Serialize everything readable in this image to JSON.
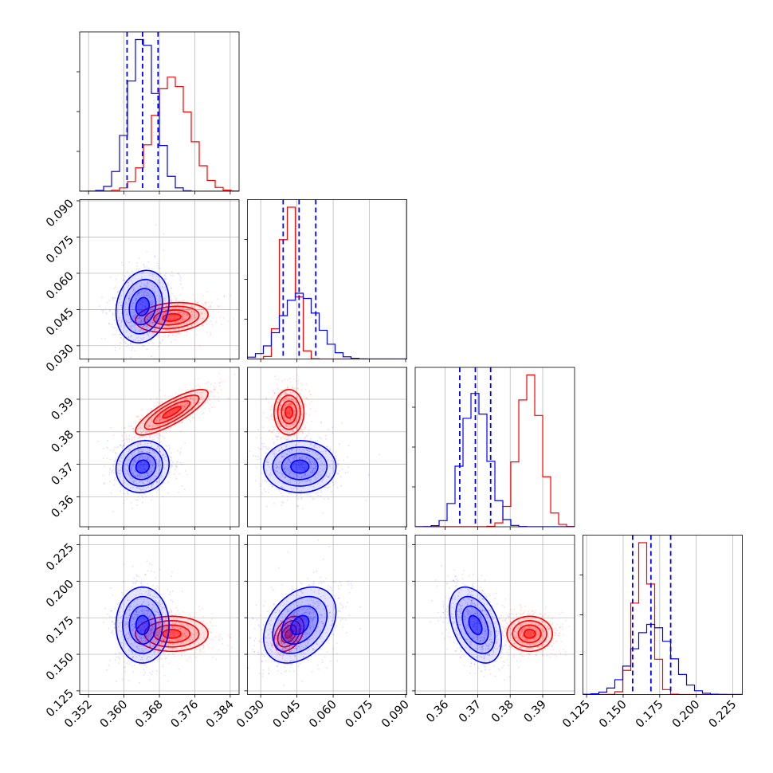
{
  "chart_data": {
    "type": "corner",
    "colors": {
      "red": "#ff0000",
      "blue": "#0000ff",
      "grid": "#b0b0b0",
      "axes": "#000000"
    },
    "grid": true,
    "params": [
      {
        "range": [
          0.35,
          0.386
        ],
        "ticks": [
          "0.352",
          "0.360",
          "0.368",
          "0.376",
          "0.384"
        ],
        "tick_values": [
          0.352,
          0.36,
          0.368,
          0.376,
          0.384
        ]
      },
      {
        "range": [
          0.0245,
          0.0905
        ],
        "ticks": [
          "0.030",
          "0.045",
          "0.060",
          "0.075",
          "0.090"
        ],
        "tick_values": [
          0.03,
          0.045,
          0.06,
          0.075,
          0.09
        ]
      },
      {
        "range": [
          0.3508,
          0.3998
        ],
        "ticks": [
          "0.36",
          "0.37",
          "0.38",
          "0.39"
        ],
        "tick_values": [
          0.36,
          0.37,
          0.38,
          0.39
        ]
      },
      {
        "range": [
          0.1225,
          0.2315
        ],
        "ticks": [
          "0.125",
          "0.150",
          "0.175",
          "0.200",
          "0.225"
        ],
        "tick_values": [
          0.125,
          0.15,
          0.175,
          0.2,
          0.225
        ]
      }
    ],
    "quantiles": [
      [
        0.3607,
        0.3642,
        0.3677
      ],
      [
        0.0393,
        0.0459,
        0.0528
      ],
      [
        0.3645,
        0.3693,
        0.374
      ],
      [
        0.1565,
        0.169,
        0.1825
      ]
    ],
    "series": [
      {
        "color": "red",
        "mean": [
          0.3708,
          0.0417,
          0.386,
          0.164
        ],
        "sd": [
          0.0041,
          0.0031,
          0.0035,
          0.006
        ],
        "corr": [
          [
            0,
            1,
            0.2
          ],
          [
            0,
            2,
            0.82
          ],
          [
            0,
            3,
            0.0
          ],
          [
            1,
            2,
            0.0
          ],
          [
            1,
            3,
            0.4
          ],
          [
            2,
            3,
            0.0
          ]
        ]
      },
      {
        "color": "blue",
        "mean": [
          0.3642,
          0.0462,
          0.3693,
          0.17
        ],
        "sd": [
          0.003,
          0.0075,
          0.004,
          0.013
        ],
        "corr": [
          [
            0,
            1,
            0.15
          ],
          [
            0,
            2,
            0.1
          ],
          [
            0,
            3,
            0.0
          ],
          [
            1,
            2,
            0.0
          ],
          [
            1,
            3,
            0.35
          ],
          [
            2,
            3,
            -0.4
          ]
        ]
      }
    ]
  }
}
